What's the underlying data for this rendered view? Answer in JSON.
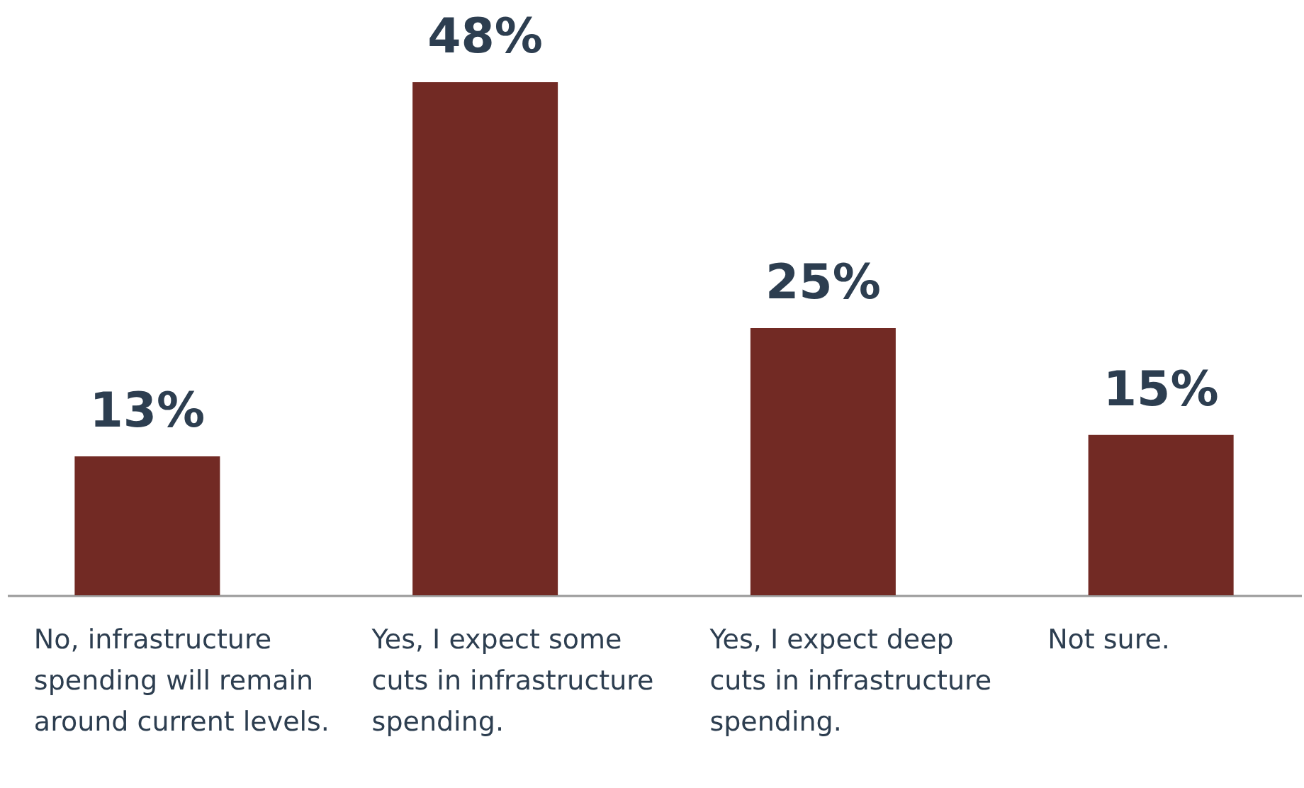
{
  "chart_data": {
    "type": "bar",
    "categories": [
      "No, infrastructure spending will remain around current levels.",
      "Yes, I expect some cuts in infrastructure spending.",
      "Yes, I expect deep cuts in infrastructure spending.",
      "Not sure."
    ],
    "values": [
      13,
      48,
      25,
      15
    ],
    "value_labels": [
      "13%",
      "48%",
      "25%",
      "15%"
    ],
    "color": "#722a24"
  }
}
